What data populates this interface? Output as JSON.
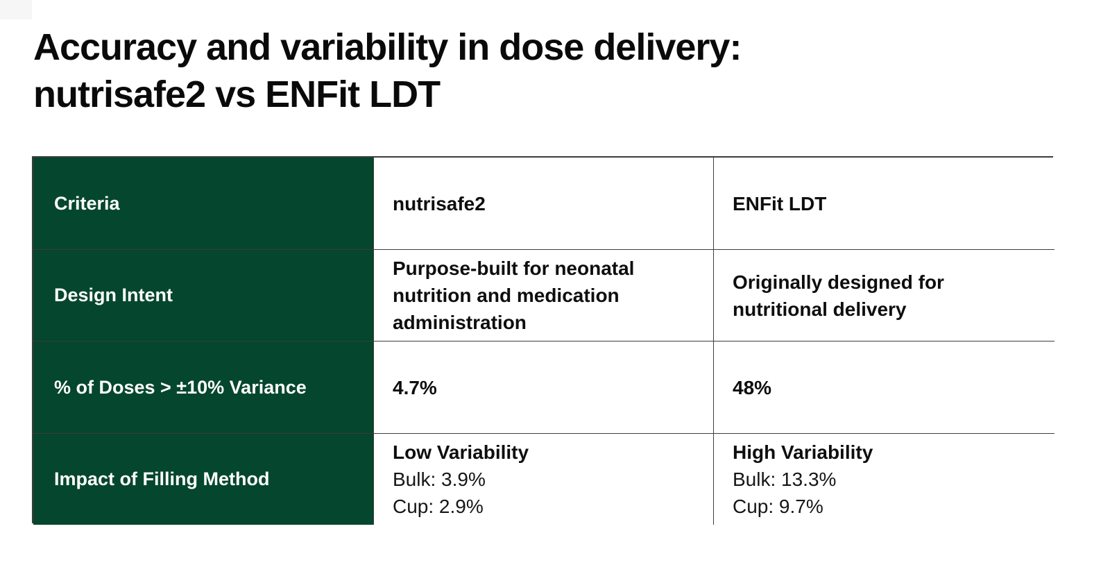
{
  "title": {
    "line1": "Accuracy and variability in dose delivery:",
    "line2": "nutrisafe2 vs ENFit LDT"
  },
  "colors": {
    "accent_green": "#05462e",
    "title_text": "#0a0a0a",
    "body_text": "#0e0e0e",
    "label_text_on_green": "#ffffff",
    "border": "#3c3c3c",
    "background": "#ffffff"
  },
  "table": {
    "header": {
      "criteria": "Criteria",
      "nutrisafe2": "nutrisafe2",
      "enfit": "ENFit LDT"
    },
    "row_design": {
      "label": "Design Intent",
      "nutrisafe2": "Purpose-built for neonatal nutrition and medication administration",
      "enfit": "Originally designed for nutritional delivery"
    },
    "row_variance": {
      "label": "% of Doses > ±10% Variance",
      "nutrisafe2": "4.7%",
      "enfit": "48%"
    },
    "row_filling": {
      "label": "Impact of Filling Method",
      "nutrisafe2_heading": "Low Variability",
      "nutrisafe2_bulk": "Bulk: 3.9%",
      "nutrisafe2_cup": "Cup: 2.9%",
      "enfit_heading": "High Variability",
      "enfit_bulk": "Bulk: 13.3%",
      "enfit_cup": "Cup: 9.7%"
    }
  }
}
